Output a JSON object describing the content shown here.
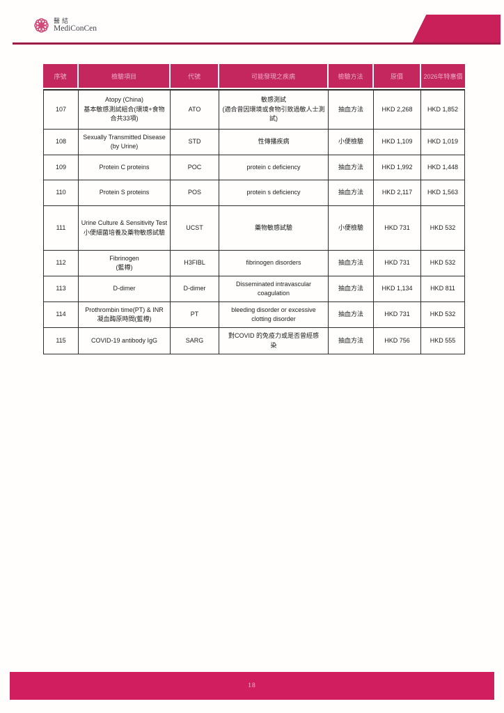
{
  "brand": {
    "cjk": "醫結",
    "name": "MediConCen"
  },
  "footer": {
    "page_number": "18"
  },
  "colors": {
    "header_bg": "#c4265e",
    "header_text": "#edaec7",
    "accent_shape": "#c92059",
    "rule": "#9f1c49",
    "footer_bg": "#d11e5e",
    "footer_text": "#eec3d2",
    "grid": "#2b2b2b",
    "text": "#1c1c1c"
  },
  "table": {
    "headers": [
      "序號",
      "檢驗項目",
      "代號",
      "可能發現之疾病",
      "檢驗方法",
      "原價",
      "2026年特惠價"
    ],
    "rows": [
      {
        "no": "107",
        "item": "Atopy (China)\n基本敏感測試組合(環境+食物合共33項)",
        "code": "ATO",
        "disease": "敏感測試\n(適合曾因環境或食物引致過敏人士測試)",
        "method": "抽血方法",
        "price": "HKD 2,268",
        "special": "HKD 1,852"
      },
      {
        "no": "108",
        "item": "Sexually Transmitted Disease\n(by Urine)",
        "code": "STD",
        "disease": "性傳播疾病",
        "method": "小便檢驗",
        "price": "HKD 1,109",
        "special": "HKD 1,019"
      },
      {
        "no": "109",
        "item": "Protein C proteins",
        "code": "POC",
        "disease": "protein c deficiency",
        "method": "抽血方法",
        "price": "HKD 1,992",
        "special": "HKD 1,448"
      },
      {
        "no": "110",
        "item": "Protein S proteins",
        "code": "POS",
        "disease": "protein s deficiency",
        "method": "抽血方法",
        "price": "HKD 2,117",
        "special": "HKD 1,563"
      },
      {
        "no": "111",
        "item": "Urine Culture & Sensitivity Test\n小便細菌培養及藥物敏感試驗",
        "code": "UCST",
        "disease": "藥物敏感試驗",
        "method": "小便檢驗",
        "price": "HKD 731",
        "special": "HKD 532"
      },
      {
        "no": "112",
        "item": "Fibrinogen\n(藍樽)",
        "code": "H3FIBL",
        "disease": "fibrinogen disorders",
        "method": "抽血方法",
        "price": "HKD 731",
        "special": "HKD 532"
      },
      {
        "no": "113",
        "item": "D-dimer",
        "code": "D-dimer",
        "disease": "Disseminated intravascular\ncoagulation",
        "method": "抽血方法",
        "price": "HKD 1,134",
        "special": "HKD 811"
      },
      {
        "no": "114",
        "item": "Prothrombin time(PT) & INR\n凝血酶原時間(藍樽)",
        "code": "PT",
        "disease": "bleeding disorder or excessive\nclotting disorder",
        "method": "抽血方法",
        "price": "HKD 731",
        "special": "HKD 532"
      },
      {
        "no": "115",
        "item": "COVID-19 antibody IgG",
        "code": "SARG",
        "disease": "對COVID 的免疫力或是否曾經感\n染",
        "method": "抽血方法",
        "price": "HKD 756",
        "special": "HKD 555"
      }
    ]
  }
}
